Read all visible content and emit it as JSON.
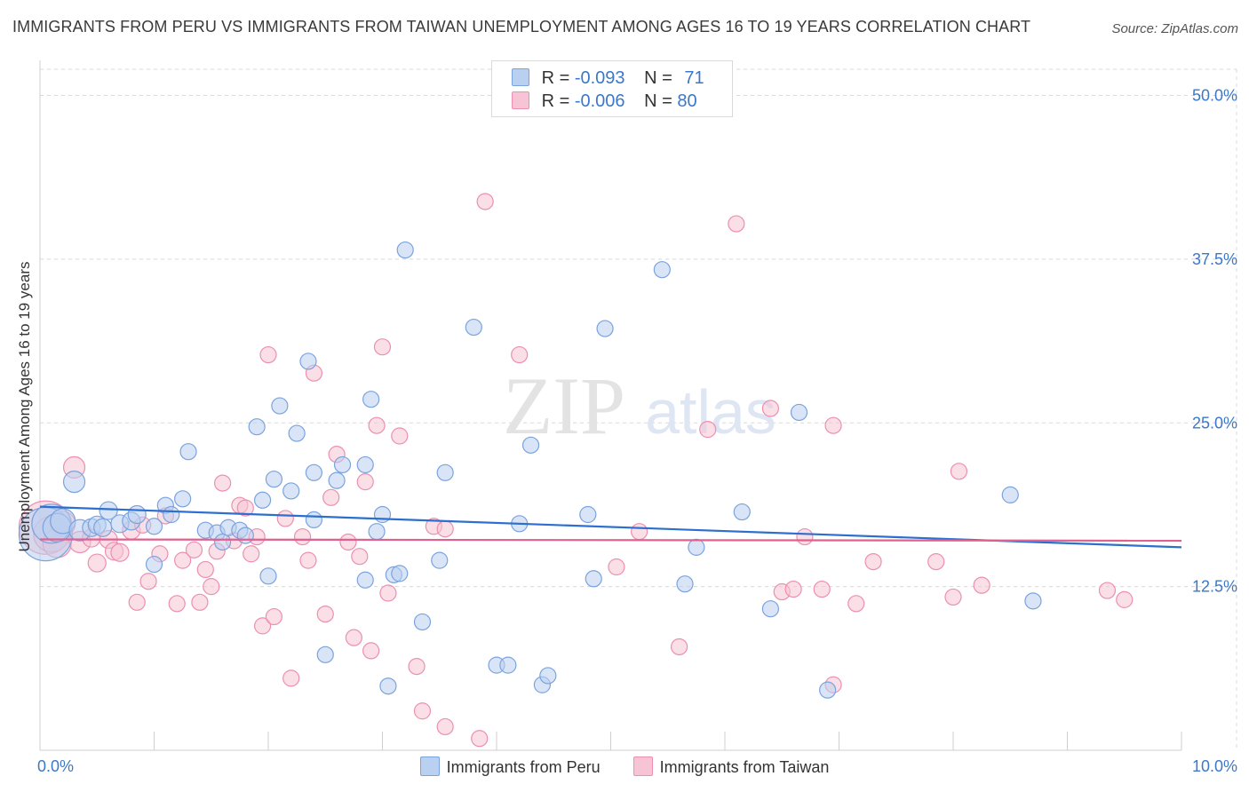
{
  "title": "IMMIGRANTS FROM PERU VS IMMIGRANTS FROM TAIWAN UNEMPLOYMENT AMONG AGES 16 TO 19 YEARS CORRELATION CHART",
  "source": "Source: ZipAtlas.com",
  "watermark": {
    "zip": "ZIP",
    "atlas": "atlas"
  },
  "colors": {
    "peru_fill": "#b9d0f0",
    "peru_stroke": "#7aa3de",
    "peru_line": "#2d6fce",
    "taiwan_fill": "#f6c4d4",
    "taiwan_stroke": "#ec8fb0",
    "taiwan_line": "#e0608f",
    "tick_label": "#3b78c9",
    "grid": "#d8d8d8"
  },
  "legend_top": {
    "peru": {
      "r_label": "R = ",
      "r_value": "-0.093",
      "n_label": "N = ",
      "n_value": "71"
    },
    "taiwan": {
      "r_label": "R = ",
      "r_value": "-0.006",
      "n_label": "N = ",
      "n_value": "80"
    }
  },
  "chart_data": {
    "type": "scatter",
    "title": "IMMIGRANTS FROM PERU VS IMMIGRANTS FROM TAIWAN UNEMPLOYMENT AMONG AGES 16 TO 19 YEARS CORRELATION CHART",
    "xlabel": "",
    "ylabel": "Unemployment Among Ages 16 to 19 years",
    "xlim": [
      0,
      10
    ],
    "ylim": [
      0,
      52
    ],
    "x_tick_labels": [
      "0.0%",
      "10.0%"
    ],
    "y_ticks": [
      12.5,
      25.0,
      37.5,
      50.0
    ],
    "y_tick_labels": [
      "12.5%",
      "25.0%",
      "37.5%",
      "50.0%"
    ],
    "grid": "horizontal-dashed",
    "legend_placement": "bottom",
    "series": [
      {
        "name": "Immigrants from Peru",
        "trend": {
          "x": [
            0,
            10
          ],
          "y": [
            18.6,
            15.5
          ]
        },
        "points": [
          [
            0.05,
            16.5
          ],
          [
            0.1,
            17.3
          ],
          [
            0.15,
            17.0
          ],
          [
            0.2,
            17.5
          ],
          [
            0.3,
            20.5
          ],
          [
            0.35,
            16.8
          ],
          [
            0.45,
            17.0
          ],
          [
            0.5,
            17.2
          ],
          [
            0.55,
            17.0
          ],
          [
            0.6,
            18.3
          ],
          [
            0.7,
            17.3
          ],
          [
            0.8,
            17.5
          ],
          [
            0.85,
            18.0
          ],
          [
            1.0,
            14.2
          ],
          [
            1.0,
            17.1
          ],
          [
            1.1,
            18.7
          ],
          [
            1.15,
            18.0
          ],
          [
            1.25,
            19.2
          ],
          [
            1.3,
            22.8
          ],
          [
            1.45,
            16.8
          ],
          [
            1.55,
            16.6
          ],
          [
            1.6,
            15.9
          ],
          [
            1.65,
            17.0
          ],
          [
            1.75,
            16.8
          ],
          [
            1.8,
            16.4
          ],
          [
            1.9,
            24.7
          ],
          [
            1.95,
            19.1
          ],
          [
            2.0,
            13.3
          ],
          [
            2.05,
            20.7
          ],
          [
            2.1,
            26.3
          ],
          [
            2.2,
            19.8
          ],
          [
            2.25,
            24.2
          ],
          [
            2.35,
            29.7
          ],
          [
            2.4,
            21.2
          ],
          [
            2.4,
            17.6
          ],
          [
            2.5,
            7.3
          ],
          [
            2.6,
            20.6
          ],
          [
            2.65,
            21.8
          ],
          [
            2.85,
            13.0
          ],
          [
            2.85,
            21.8
          ],
          [
            2.9,
            26.8
          ],
          [
            2.95,
            16.7
          ],
          [
            3.0,
            18.0
          ],
          [
            3.05,
            4.9
          ],
          [
            3.1,
            13.4
          ],
          [
            3.15,
            13.5
          ],
          [
            3.2,
            38.2
          ],
          [
            3.35,
            9.8
          ],
          [
            3.5,
            14.5
          ],
          [
            3.55,
            21.2
          ],
          [
            3.8,
            32.3
          ],
          [
            4.0,
            6.5
          ],
          [
            4.1,
            6.5
          ],
          [
            4.2,
            17.3
          ],
          [
            4.3,
            23.3
          ],
          [
            4.4,
            5.0
          ],
          [
            4.45,
            5.7
          ],
          [
            4.8,
            18.0
          ],
          [
            4.85,
            13.1
          ],
          [
            4.95,
            32.2
          ],
          [
            5.45,
            36.7
          ],
          [
            5.65,
            12.7
          ],
          [
            5.75,
            15.5
          ],
          [
            6.15,
            18.2
          ],
          [
            6.4,
            10.8
          ],
          [
            6.65,
            25.8
          ],
          [
            6.9,
            4.6
          ],
          [
            8.5,
            19.5
          ],
          [
            8.7,
            11.4
          ]
        ],
        "sizes": [
          30,
          22,
          16,
          14,
          12,
          12,
          10,
          10,
          10,
          10,
          10,
          10,
          10,
          9,
          9,
          9,
          9,
          9,
          9,
          9,
          9,
          9,
          9,
          9,
          9,
          9,
          9,
          9,
          9,
          9,
          9,
          9,
          9,
          9,
          9,
          9,
          9,
          9,
          9,
          9,
          9,
          9,
          9,
          9,
          9,
          9,
          9,
          9,
          9,
          9,
          9,
          9,
          9,
          9,
          9,
          9,
          9,
          9,
          9,
          9,
          9,
          9,
          9,
          9,
          9,
          9,
          9,
          9,
          9
        ]
      },
      {
        "name": "Immigrants from Taiwan",
        "trend": {
          "x": [
            0,
            10
          ],
          "y": [
            16.1,
            16.0
          ]
        },
        "points": [
          [
            0.05,
            17.0
          ],
          [
            0.1,
            16.5
          ],
          [
            0.15,
            15.8
          ],
          [
            0.2,
            17.3
          ],
          [
            0.3,
            21.6
          ],
          [
            0.35,
            15.9
          ],
          [
            0.45,
            16.2
          ],
          [
            0.5,
            14.3
          ],
          [
            0.6,
            16.1
          ],
          [
            0.65,
            15.2
          ],
          [
            0.7,
            15.1
          ],
          [
            0.8,
            16.8
          ],
          [
            0.85,
            11.3
          ],
          [
            0.9,
            17.2
          ],
          [
            0.95,
            12.9
          ],
          [
            1.05,
            15.0
          ],
          [
            1.1,
            17.9
          ],
          [
            1.2,
            11.2
          ],
          [
            1.25,
            14.5
          ],
          [
            1.35,
            15.3
          ],
          [
            1.4,
            11.3
          ],
          [
            1.45,
            13.8
          ],
          [
            1.5,
            12.5
          ],
          [
            1.55,
            15.2
          ],
          [
            1.6,
            20.4
          ],
          [
            1.7,
            16.0
          ],
          [
            1.75,
            18.7
          ],
          [
            1.8,
            18.5
          ],
          [
            1.85,
            15.0
          ],
          [
            1.9,
            16.3
          ],
          [
            1.95,
            9.5
          ],
          [
            2.0,
            30.2
          ],
          [
            2.05,
            10.2
          ],
          [
            2.15,
            17.7
          ],
          [
            2.2,
            5.5
          ],
          [
            2.3,
            16.3
          ],
          [
            2.35,
            14.5
          ],
          [
            2.4,
            28.8
          ],
          [
            2.5,
            10.4
          ],
          [
            2.55,
            19.3
          ],
          [
            2.6,
            22.6
          ],
          [
            2.7,
            15.9
          ],
          [
            2.75,
            8.6
          ],
          [
            2.8,
            14.8
          ],
          [
            2.85,
            20.5
          ],
          [
            2.9,
            7.6
          ],
          [
            2.95,
            24.8
          ],
          [
            3.0,
            30.8
          ],
          [
            3.05,
            12.0
          ],
          [
            3.15,
            24.0
          ],
          [
            3.3,
            6.4
          ],
          [
            3.35,
            3.0
          ],
          [
            3.45,
            17.1
          ],
          [
            3.55,
            16.9
          ],
          [
            3.55,
            1.8
          ],
          [
            3.85,
            0.9
          ],
          [
            3.9,
            41.9
          ],
          [
            4.2,
            30.2
          ],
          [
            5.05,
            14.0
          ],
          [
            5.25,
            16.7
          ],
          [
            5.6,
            7.9
          ],
          [
            5.85,
            24.5
          ],
          [
            6.1,
            40.2
          ],
          [
            6.4,
            26.1
          ],
          [
            6.5,
            12.1
          ],
          [
            6.6,
            12.3
          ],
          [
            6.7,
            16.3
          ],
          [
            6.85,
            12.3
          ],
          [
            6.95,
            24.8
          ],
          [
            7.15,
            11.2
          ],
          [
            7.3,
            14.4
          ],
          [
            7.85,
            14.4
          ],
          [
            8.0,
            11.7
          ],
          [
            8.05,
            21.3
          ],
          [
            8.25,
            12.6
          ],
          [
            9.35,
            12.2
          ],
          [
            9.5,
            11.5
          ],
          [
            6.95,
            5.0
          ]
        ],
        "sizes": [
          30,
          20,
          16,
          14,
          12,
          12,
          10,
          10,
          10,
          10,
          10,
          10,
          9,
          9,
          9,
          9,
          9,
          9,
          9,
          9,
          9,
          9,
          9,
          9,
          9,
          9,
          9,
          9,
          9,
          9,
          9,
          9,
          9,
          9,
          9,
          9,
          9,
          9,
          9,
          9,
          9,
          9,
          9,
          9,
          9,
          9,
          9,
          9,
          9,
          9,
          9,
          9,
          9,
          9,
          9,
          9,
          9,
          9,
          9,
          9,
          9,
          9,
          9,
          9,
          9,
          9,
          9,
          9,
          9,
          9,
          9,
          9,
          9,
          9,
          9,
          9,
          9,
          9
        ]
      }
    ]
  }
}
